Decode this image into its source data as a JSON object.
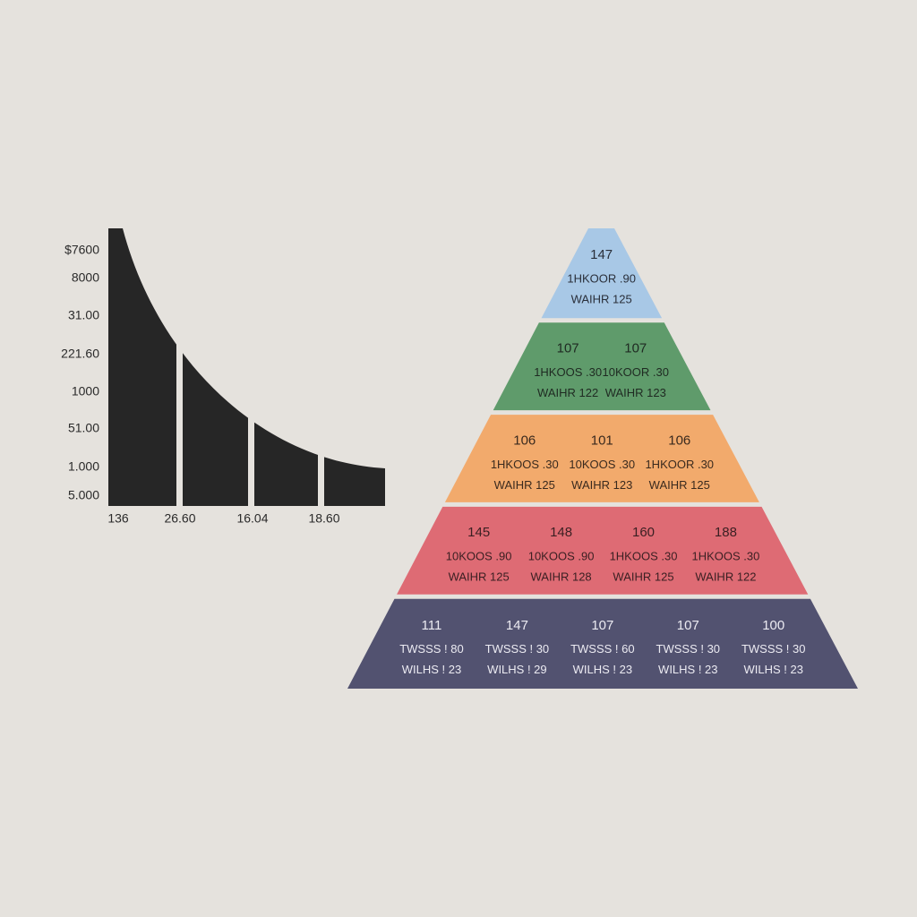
{
  "curve_graphic": {
    "y_labels": [
      "$7600",
      "8000",
      "31.00",
      "221.60",
      "1000",
      "51.00",
      "1.000",
      "5.000"
    ],
    "x_labels": [
      "136",
      "26.60",
      "16.04",
      "18.60"
    ]
  },
  "pyramid": {
    "levels": [
      {
        "color": "#a8c8e6",
        "text_color": "#2a2f3a",
        "cells": [
          [
            "147",
            "1HKOOR .90",
            "WAIHR 125"
          ]
        ]
      },
      {
        "color": "#5f9b6b",
        "text_color": "#1f2a22",
        "cells": [
          [
            "107",
            "1HKOOS .30",
            "WAIHR 122"
          ],
          [
            "107",
            "10KOOR .30",
            "WAIHR 123"
          ]
        ]
      },
      {
        "color": "#f2aa6c",
        "text_color": "#3a2a1e",
        "cells": [
          [
            "106",
            "1HKOOS .30",
            "WAIHR 125"
          ],
          [
            "101",
            "10KOOS .30",
            "WAIHR 123"
          ],
          [
            "106",
            "1HKOOR .30",
            "WAIHR 125"
          ]
        ]
      },
      {
        "color": "#de6b74",
        "text_color": "#3a1f22",
        "cells": [
          [
            "145",
            "10KOOS .90",
            "WAIHR 125"
          ],
          [
            "148",
            "10KOOS .90",
            "WAIHR 128"
          ],
          [
            "160",
            "1HKOOS .30",
            "WAIHR 125"
          ],
          [
            "188",
            "1HKOOS .30",
            "WAIHR 122"
          ]
        ]
      },
      {
        "color": "#525270",
        "text_color": "#ecebf2",
        "cells": [
          [
            "111",
            "TWSSS ! 80",
            "WILHS ! 23"
          ],
          [
            "147",
            "TWSSS ! 30",
            "WILHS ! 29"
          ],
          [
            "107",
            "TWSSS ! 60",
            "WILHS ! 23"
          ],
          [
            "107",
            "TWSSS ! 30",
            "WILHS ! 23"
          ],
          [
            "100",
            "TWSSS ! 30",
            "WILHS ! 23"
          ]
        ]
      }
    ]
  }
}
